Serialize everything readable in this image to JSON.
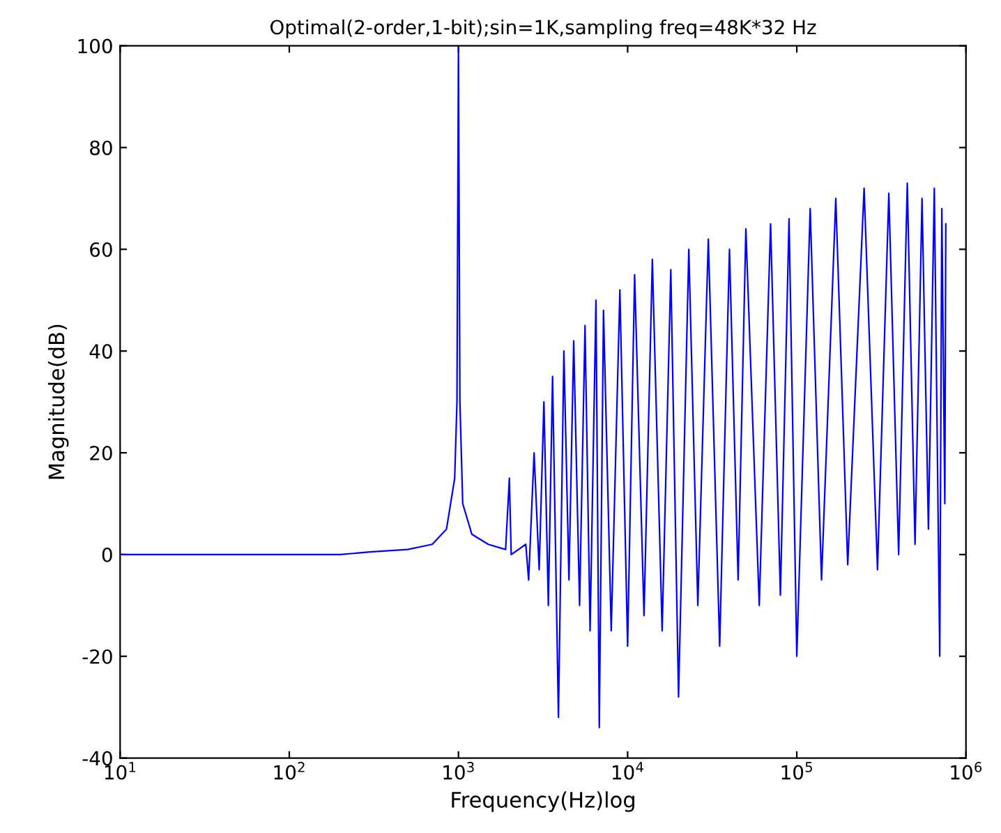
{
  "chart_data": {
    "type": "line",
    "title": "Optimal(2-order,1-bit);sin=1K,sampling freq=48K*32 Hz",
    "xlabel": "Frequency(Hz)log",
    "ylabel": "Magnitude(dB)",
    "log": "x",
    "grid": false,
    "legend": false,
    "marker": "none",
    "line_style": "solid",
    "xlim": [
      10,
      1000000
    ],
    "xticks": [
      {
        "value": 10,
        "label": "10$^{1}$"
      },
      {
        "value": 100,
        "label": "10$^{2}$"
      },
      {
        "value": 1000,
        "label": "10$^{3}$"
      },
      {
        "value": 10000,
        "label": "10$^{4}$"
      },
      {
        "value": 100000,
        "label": "10$^{5}$"
      },
      {
        "value": 1000000,
        "label": "10$^{6}$"
      }
    ],
    "ylim": [
      -40,
      100
    ],
    "yticks": [
      -40,
      -20,
      0,
      20,
      40,
      60,
      80,
      100
    ],
    "series": [
      {
        "color": "#0000ff",
        "x": [
          10,
          100,
          200,
          300,
          500,
          700,
          850,
          950,
          980,
          1000,
          1020,
          1060,
          1200,
          1500,
          1900,
          2000,
          2050,
          2500,
          2600,
          2800,
          3000,
          3200,
          3400,
          3600,
          3900,
          4200,
          4500,
          4800,
          5200,
          5600,
          6000,
          6500,
          6800,
          7200,
          8000,
          9000,
          10000,
          11000,
          12500,
          14000,
          16000,
          18000,
          20000,
          23000,
          26000,
          30000,
          35000,
          40000,
          45000,
          50000,
          60000,
          70000,
          80000,
          90000,
          100000,
          120000,
          140000,
          170000,
          200000,
          250000,
          300000,
          350000,
          400000,
          450000,
          500000,
          550000,
          600000,
          650000,
          700000,
          720000,
          750000,
          760000
        ],
        "values": [
          0,
          0,
          0,
          0.5,
          1,
          2,
          5,
          15,
          30,
          100,
          30,
          10,
          4,
          2,
          1,
          15,
          0,
          2,
          -5,
          20,
          -3,
          30,
          -10,
          35,
          -32,
          40,
          -5,
          42,
          -10,
          45,
          -15,
          50,
          -34,
          48,
          -15,
          52,
          -18,
          55,
          -12,
          58,
          -15,
          56,
          -28,
          60,
          -10,
          62,
          -18,
          60,
          -5,
          64,
          -10,
          65,
          -8,
          66,
          -20,
          68,
          -5,
          70,
          -2,
          72,
          -3,
          71,
          0,
          73,
          2,
          70,
          5,
          72,
          -20,
          68,
          10,
          65
        ]
      }
    ]
  }
}
